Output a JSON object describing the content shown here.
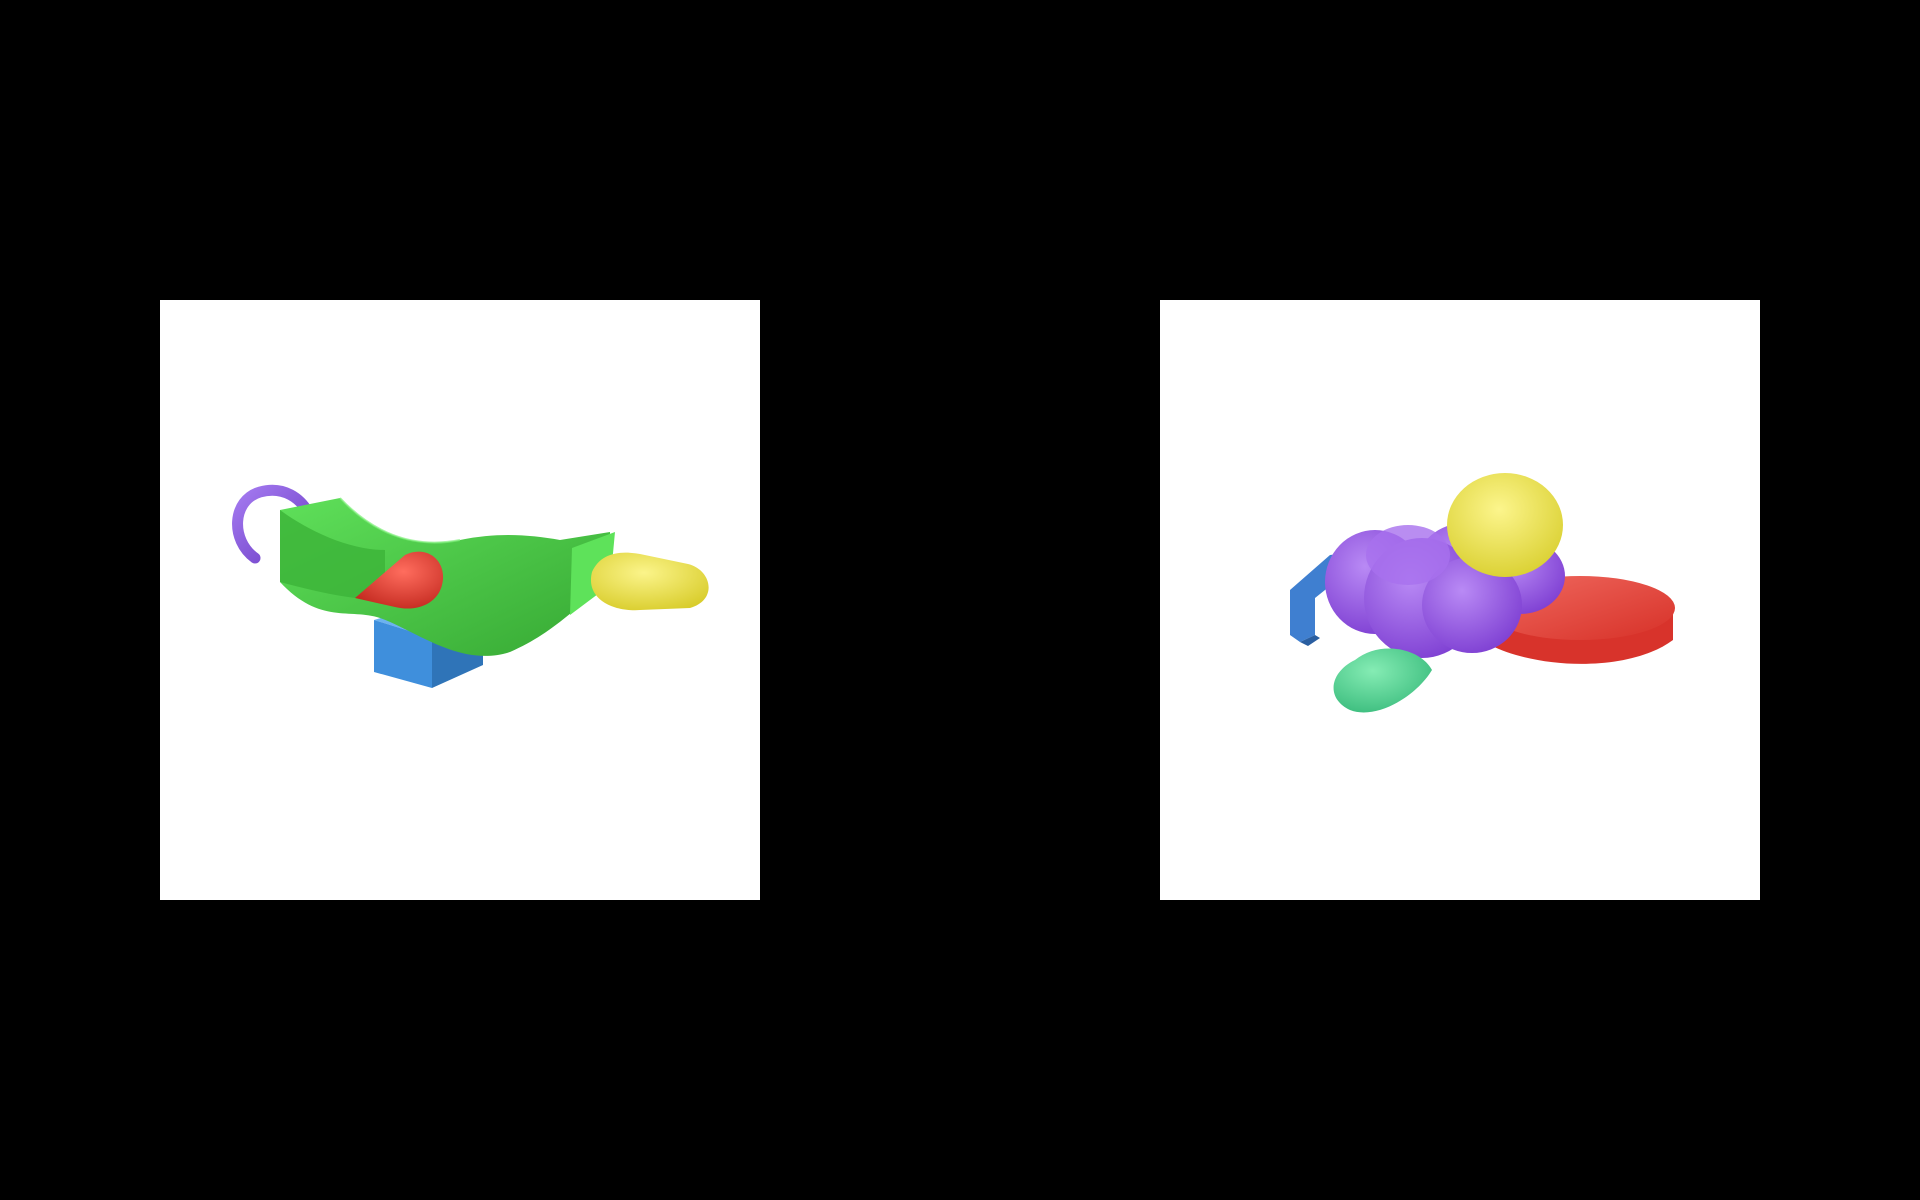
{
  "background_color": "#000000",
  "panels": [
    {
      "name": "left-render",
      "background_color": "#ffffff",
      "objects": [
        {
          "name": "purple-hook",
          "shape": "torus-arc",
          "color": "#8a55e0"
        },
        {
          "name": "green-wavy-sheet",
          "shape": "curved-sheet",
          "color": "#4cc94a"
        },
        {
          "name": "red-cone",
          "shape": "cone",
          "color": "#e5362b"
        },
        {
          "name": "blue-cube",
          "shape": "box",
          "color": "#3f8fdc"
        },
        {
          "name": "yellow-capsule",
          "shape": "capsule",
          "color": "#e8e04a"
        }
      ]
    },
    {
      "name": "right-render",
      "background_color": "#ffffff",
      "objects": [
        {
          "name": "blue-bent-bar",
          "shape": "bent-bar",
          "color": "#3f7fd0"
        },
        {
          "name": "purple-blob",
          "shape": "lobed-blob",
          "color": "#9a52e6"
        },
        {
          "name": "yellow-egg",
          "shape": "ellipsoid",
          "color": "#eee14a"
        },
        {
          "name": "red-disk",
          "shape": "cylinder-disk",
          "color": "#e23b34"
        },
        {
          "name": "green-leaf",
          "shape": "leaf-ellipsoid",
          "color": "#4fd08f"
        }
      ]
    }
  ]
}
